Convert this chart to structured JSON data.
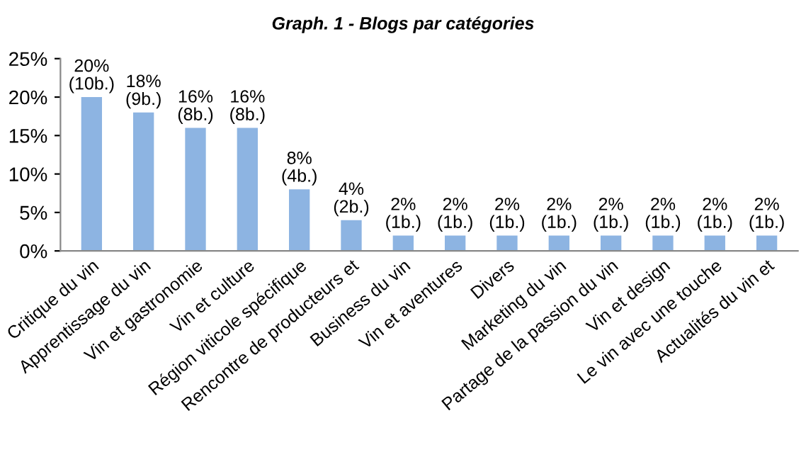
{
  "chart_data": {
    "type": "bar",
    "title": "Graph. 1 - Blogs par catégories",
    "categories": [
      "Critique du vin",
      "Apprentissage du vin",
      "Vin et gastronomie",
      "Vin et culture",
      "Région viticole spécifique",
      "Rencontre de producteurs et",
      "Business du vin",
      "Vin et aventures",
      "Divers",
      "Marketing du vin",
      "Partage de la passion du vin",
      "Vin et design",
      "Le vin avec une touche",
      "Actualités du vin et"
    ],
    "values": [
      20,
      18,
      16,
      16,
      8,
      4,
      2,
      2,
      2,
      2,
      2,
      2,
      2,
      2
    ],
    "value_labels": [
      "20%\n(10b.)",
      "18%\n(9b.)",
      "16%\n(8b.)",
      "16%\n(8b.)",
      "8%\n(4b.)",
      "4%\n(2b.)",
      "2%\n(1b.)",
      "2%\n(1b.)",
      "2%\n(1b.)",
      "2%\n(1b.)",
      "2%\n(1b.)",
      "2%\n(1b.)",
      "2%\n(1b.)",
      "2%\n(1b.)"
    ],
    "color": "#8db4e2",
    "ylim": [
      0,
      25
    ],
    "yticks": [
      {
        "value": 0,
        "label": "0%"
      },
      {
        "value": 5,
        "label": "5%"
      },
      {
        "value": 10,
        "label": "10%"
      },
      {
        "value": 15,
        "label": "15%"
      },
      {
        "value": 20,
        "label": "20%"
      },
      {
        "value": 25,
        "label": "25%"
      }
    ],
    "grid": false,
    "legend": false
  }
}
